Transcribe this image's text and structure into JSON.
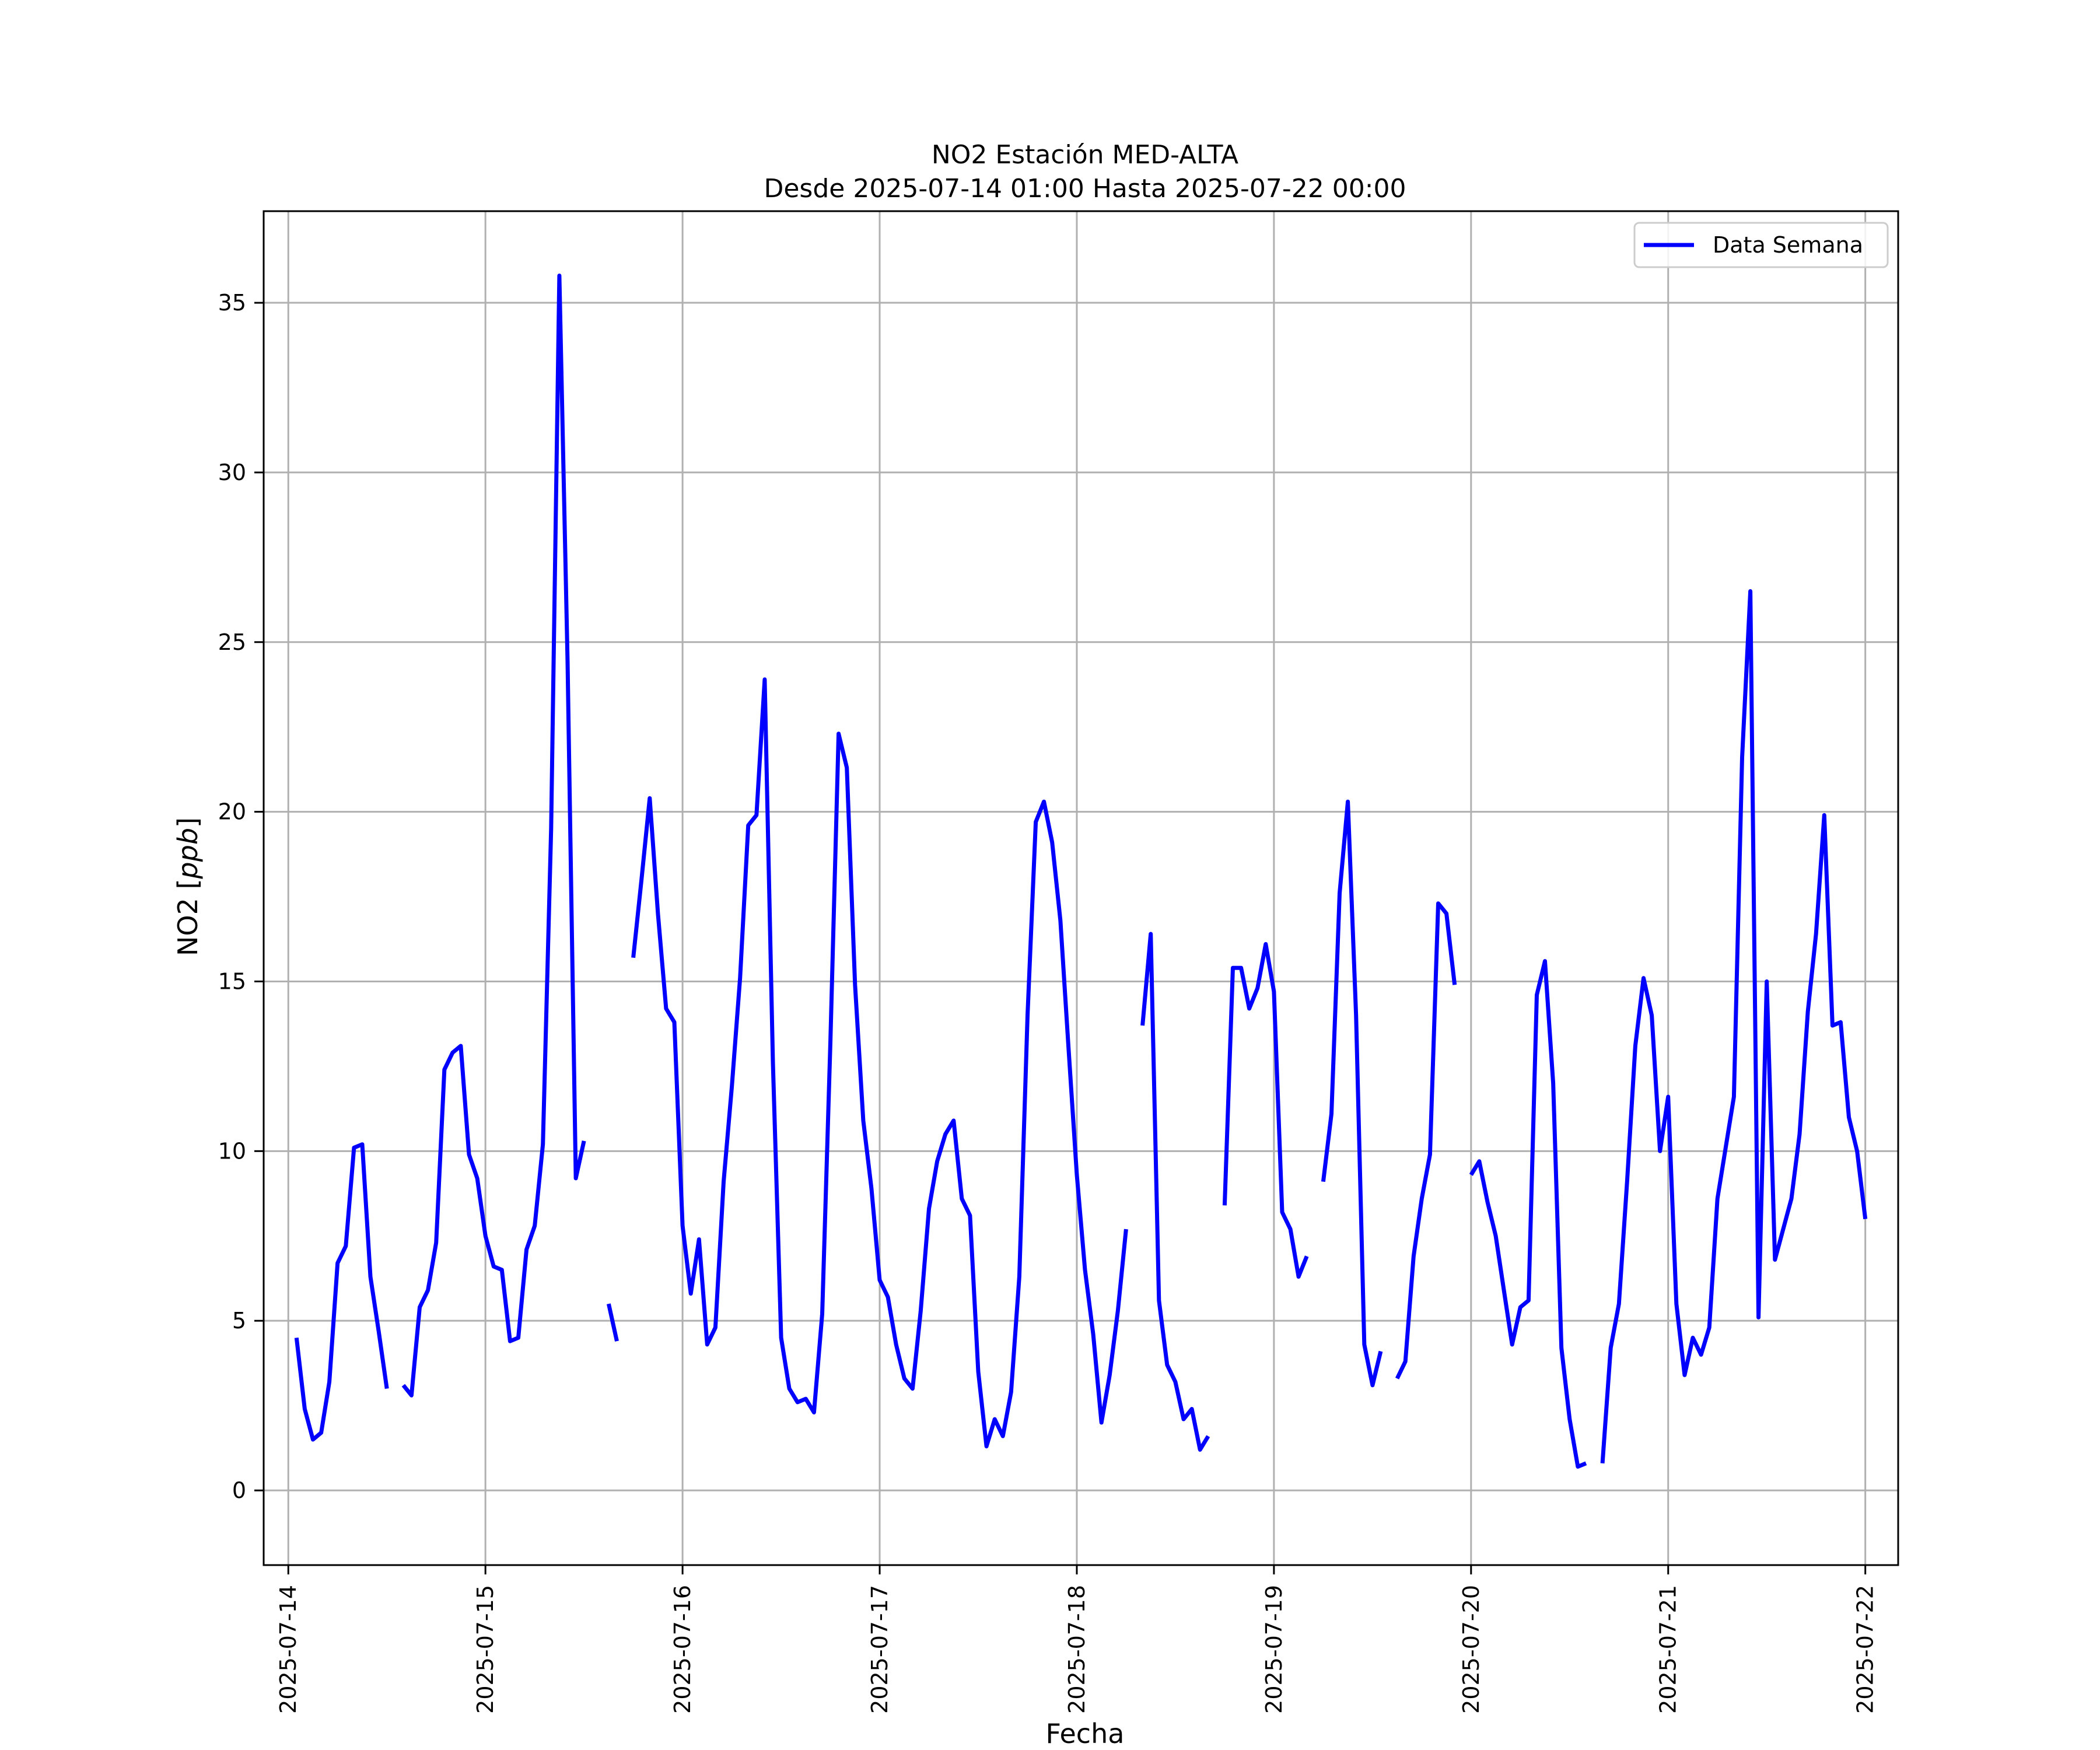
{
  "chart_data": {
    "type": "line",
    "title": "NO2 Estación MED-ALTA",
    "subtitle": "Desde 2025-07-14 01:00 Hasta 2025-07-22 00:00",
    "xlabel": "Fecha",
    "ylabel_main": "NO2 [",
    "ylabel_unit": "ppb",
    "ylabel_end": "]",
    "ylim": [
      -2.2,
      37.7
    ],
    "xlim": [
      "2025-07-13T21:00",
      "2025-07-22T04:00"
    ],
    "grid": true,
    "legend_position": "top-right",
    "x_ticks": [
      "2025-07-14",
      "2025-07-15",
      "2025-07-16",
      "2025-07-17",
      "2025-07-18",
      "2025-07-19",
      "2025-07-20",
      "2025-07-21",
      "2025-07-22"
    ],
    "y_ticks": [
      0,
      5,
      10,
      15,
      20,
      25,
      30,
      35
    ],
    "series": [
      {
        "name": "Data Semana",
        "color": "#0000ff",
        "points": [
          [
            "2025-07-14T01:00",
            4.5
          ],
          [
            "2025-07-14T02:00",
            2.4
          ],
          [
            "2025-07-14T03:00",
            1.5
          ],
          [
            "2025-07-14T04:00",
            1.7
          ],
          [
            "2025-07-14T05:00",
            3.2
          ],
          [
            "2025-07-14T06:00",
            6.7
          ],
          [
            "2025-07-14T07:00",
            7.2
          ],
          [
            "2025-07-14T08:00",
            10.1
          ],
          [
            "2025-07-14T09:00",
            10.2
          ],
          [
            "2025-07-14T10:00",
            6.3
          ],
          [
            "2025-07-14T11:00",
            4.7
          ],
          [
            "2025-07-14T12:00",
            3.0
          ],
          [
            "2025-07-14T13:00",
            null
          ],
          [
            "2025-07-14T14:00",
            3.1
          ],
          [
            "2025-07-14T15:00",
            2.8
          ],
          [
            "2025-07-14T16:00",
            5.4
          ],
          [
            "2025-07-14T17:00",
            5.9
          ],
          [
            "2025-07-14T18:00",
            7.3
          ],
          [
            "2025-07-14T19:00",
            12.4
          ],
          [
            "2025-07-14T20:00",
            12.9
          ],
          [
            "2025-07-14T21:00",
            13.1
          ],
          [
            "2025-07-14T22:00",
            9.9
          ],
          [
            "2025-07-14T23:00",
            9.2
          ],
          [
            "2025-07-15T00:00",
            7.5
          ],
          [
            "2025-07-15T01:00",
            6.6
          ],
          [
            "2025-07-15T02:00",
            6.5
          ],
          [
            "2025-07-15T03:00",
            4.4
          ],
          [
            "2025-07-15T04:00",
            4.5
          ],
          [
            "2025-07-15T05:00",
            7.1
          ],
          [
            "2025-07-15T06:00",
            7.8
          ],
          [
            "2025-07-15T07:00",
            10.2
          ],
          [
            "2025-07-15T08:00",
            19.5
          ],
          [
            "2025-07-15T09:00",
            35.8
          ],
          [
            "2025-07-15T10:00",
            24.4
          ],
          [
            "2025-07-15T11:00",
            9.2
          ],
          [
            "2025-07-15T12:00",
            10.3
          ],
          [
            "2025-07-15T13:00",
            null
          ],
          [
            "2025-07-15T15:00",
            5.5
          ],
          [
            "2025-07-15T16:00",
            4.4
          ],
          [
            "2025-07-15T17:00",
            null
          ],
          [
            "2025-07-15T18:00",
            15.7
          ],
          [
            "2025-07-15T19:00",
            18.0
          ],
          [
            "2025-07-15T20:00",
            20.4
          ],
          [
            "2025-07-15T21:00",
            17.0
          ],
          [
            "2025-07-15T22:00",
            14.2
          ],
          [
            "2025-07-15T23:00",
            13.8
          ],
          [
            "2025-07-16T00:00",
            7.8
          ],
          [
            "2025-07-16T01:00",
            5.8
          ],
          [
            "2025-07-16T02:00",
            7.4
          ],
          [
            "2025-07-16T03:00",
            4.3
          ],
          [
            "2025-07-16T04:00",
            4.8
          ],
          [
            "2025-07-16T05:00",
            9.1
          ],
          [
            "2025-07-16T06:00",
            11.9
          ],
          [
            "2025-07-16T07:00",
            15.1
          ],
          [
            "2025-07-16T08:00",
            19.6
          ],
          [
            "2025-07-16T09:00",
            19.9
          ],
          [
            "2025-07-16T10:00",
            23.9
          ],
          [
            "2025-07-16T11:00",
            12.6
          ],
          [
            "2025-07-16T12:00",
            4.5
          ],
          [
            "2025-07-16T13:00",
            3.0
          ],
          [
            "2025-07-16T14:00",
            2.6
          ],
          [
            "2025-07-16T15:00",
            2.7
          ],
          [
            "2025-07-16T16:00",
            2.3
          ],
          [
            "2025-07-16T17:00",
            5.2
          ],
          [
            "2025-07-16T18:00",
            13.2
          ],
          [
            "2025-07-16T19:00",
            22.3
          ],
          [
            "2025-07-16T20:00",
            21.3
          ],
          [
            "2025-07-16T21:00",
            14.9
          ],
          [
            "2025-07-16T22:00",
            10.9
          ],
          [
            "2025-07-16T23:00",
            8.9
          ],
          [
            "2025-07-17T00:00",
            6.2
          ],
          [
            "2025-07-17T01:00",
            5.7
          ],
          [
            "2025-07-17T02:00",
            4.3
          ],
          [
            "2025-07-17T03:00",
            3.3
          ],
          [
            "2025-07-17T04:00",
            3.0
          ],
          [
            "2025-07-17T05:00",
            5.3
          ],
          [
            "2025-07-17T06:00",
            8.3
          ],
          [
            "2025-07-17T07:00",
            9.7
          ],
          [
            "2025-07-17T08:00",
            10.5
          ],
          [
            "2025-07-17T09:00",
            10.9
          ],
          [
            "2025-07-17T10:00",
            8.6
          ],
          [
            "2025-07-17T11:00",
            8.1
          ],
          [
            "2025-07-17T12:00",
            3.5
          ],
          [
            "2025-07-17T13:00",
            1.3
          ],
          [
            "2025-07-17T14:00",
            2.1
          ],
          [
            "2025-07-17T15:00",
            1.6
          ],
          [
            "2025-07-17T16:00",
            2.9
          ],
          [
            "2025-07-17T17:00",
            6.3
          ],
          [
            "2025-07-17T18:00",
            14.0
          ],
          [
            "2025-07-17T19:00",
            19.7
          ],
          [
            "2025-07-17T20:00",
            20.3
          ],
          [
            "2025-07-17T21:00",
            19.1
          ],
          [
            "2025-07-17T22:00",
            16.8
          ],
          [
            "2025-07-17T23:00",
            13.0
          ],
          [
            "2025-07-18T00:00",
            9.3
          ],
          [
            "2025-07-18T01:00",
            6.5
          ],
          [
            "2025-07-18T02:00",
            4.6
          ],
          [
            "2025-07-18T03:00",
            2.0
          ],
          [
            "2025-07-18T04:00",
            3.4
          ],
          [
            "2025-07-18T05:00",
            5.3
          ],
          [
            "2025-07-18T06:00",
            7.7
          ],
          [
            "2025-07-18T07:00",
            null
          ],
          [
            "2025-07-18T08:00",
            13.7
          ],
          [
            "2025-07-18T09:00",
            16.4
          ],
          [
            "2025-07-18T10:00",
            5.6
          ],
          [
            "2025-07-18T11:00",
            3.7
          ],
          [
            "2025-07-18T12:00",
            3.2
          ],
          [
            "2025-07-18T13:00",
            2.1
          ],
          [
            "2025-07-18T14:00",
            2.4
          ],
          [
            "2025-07-18T15:00",
            1.2
          ],
          [
            "2025-07-18T16:00",
            1.6
          ],
          [
            "2025-07-18T17:00",
            null
          ],
          [
            "2025-07-18T18:00",
            8.4
          ],
          [
            "2025-07-18T19:00",
            15.4
          ],
          [
            "2025-07-18T20:00",
            15.4
          ],
          [
            "2025-07-18T21:00",
            14.2
          ],
          [
            "2025-07-18T22:00",
            14.8
          ],
          [
            "2025-07-18T23:00",
            16.1
          ],
          [
            "2025-07-19T00:00",
            14.7
          ],
          [
            "2025-07-19T01:00",
            8.2
          ],
          [
            "2025-07-19T02:00",
            7.7
          ],
          [
            "2025-07-19T03:00",
            6.3
          ],
          [
            "2025-07-19T04:00",
            6.9
          ],
          [
            "2025-07-19T05:00",
            null
          ],
          [
            "2025-07-19T06:00",
            9.1
          ],
          [
            "2025-07-19T07:00",
            11.1
          ],
          [
            "2025-07-19T08:00",
            17.6
          ],
          [
            "2025-07-19T09:00",
            20.3
          ],
          [
            "2025-07-19T10:00",
            14.0
          ],
          [
            "2025-07-19T11:00",
            4.3
          ],
          [
            "2025-07-19T12:00",
            3.1
          ],
          [
            "2025-07-19T13:00",
            4.1
          ],
          [
            "2025-07-19T14:00",
            null
          ],
          [
            "2025-07-19T15:00",
            3.3
          ],
          [
            "2025-07-19T16:00",
            3.8
          ],
          [
            "2025-07-19T17:00",
            6.9
          ],
          [
            "2025-07-19T18:00",
            8.6
          ],
          [
            "2025-07-19T19:00",
            9.9
          ],
          [
            "2025-07-19T20:00",
            17.3
          ],
          [
            "2025-07-19T21:00",
            17.0
          ],
          [
            "2025-07-19T22:00",
            14.9
          ],
          [
            "2025-07-19T23:00",
            null
          ],
          [
            "2025-07-20T00:00",
            9.3
          ],
          [
            "2025-07-20T01:00",
            9.7
          ],
          [
            "2025-07-20T02:00",
            8.5
          ],
          [
            "2025-07-20T03:00",
            7.5
          ],
          [
            "2025-07-20T04:00",
            5.9
          ],
          [
            "2025-07-20T05:00",
            4.3
          ],
          [
            "2025-07-20T06:00",
            5.4
          ],
          [
            "2025-07-20T07:00",
            5.6
          ],
          [
            "2025-07-20T08:00",
            14.6
          ],
          [
            "2025-07-20T09:00",
            15.6
          ],
          [
            "2025-07-20T10:00",
            12.0
          ],
          [
            "2025-07-20T11:00",
            4.2
          ],
          [
            "2025-07-20T12:00",
            2.1
          ],
          [
            "2025-07-20T13:00",
            0.7
          ],
          [
            "2025-07-20T14:00",
            0.8
          ],
          [
            "2025-07-20T15:00",
            null
          ],
          [
            "2025-07-20T16:00",
            0.8
          ],
          [
            "2025-07-20T17:00",
            4.2
          ],
          [
            "2025-07-20T18:00",
            5.5
          ],
          [
            "2025-07-20T19:00",
            9.1
          ],
          [
            "2025-07-20T20:00",
            13.1
          ],
          [
            "2025-07-20T21:00",
            15.1
          ],
          [
            "2025-07-20T22:00",
            14.0
          ],
          [
            "2025-07-20T23:00",
            10.0
          ],
          [
            "2025-07-21T00:00",
            11.6
          ],
          [
            "2025-07-21T01:00",
            5.5
          ],
          [
            "2025-07-21T02:00",
            3.4
          ],
          [
            "2025-07-21T03:00",
            4.5
          ],
          [
            "2025-07-21T04:00",
            4.0
          ],
          [
            "2025-07-21T05:00",
            4.8
          ],
          [
            "2025-07-21T06:00",
            8.6
          ],
          [
            "2025-07-21T07:00",
            10.1
          ],
          [
            "2025-07-21T08:00",
            11.6
          ],
          [
            "2025-07-21T09:00",
            21.6
          ],
          [
            "2025-07-21T10:00",
            26.5
          ],
          [
            "2025-07-21T11:00",
            5.1
          ],
          [
            "2025-07-21T12:00",
            15.0
          ],
          [
            "2025-07-21T13:00",
            6.8
          ],
          [
            "2025-07-21T14:00",
            7.7
          ],
          [
            "2025-07-21T15:00",
            8.6
          ],
          [
            "2025-07-21T16:00",
            10.5
          ],
          [
            "2025-07-21T17:00",
            14.1
          ],
          [
            "2025-07-21T18:00",
            16.4
          ],
          [
            "2025-07-21T19:00",
            19.9
          ],
          [
            "2025-07-21T20:00",
            13.7
          ],
          [
            "2025-07-21T21:00",
            13.8
          ],
          [
            "2025-07-21T22:00",
            11.0
          ],
          [
            "2025-07-21T23:00",
            10.0
          ],
          [
            "2025-07-22T00:00",
            8.0
          ]
        ]
      }
    ]
  }
}
